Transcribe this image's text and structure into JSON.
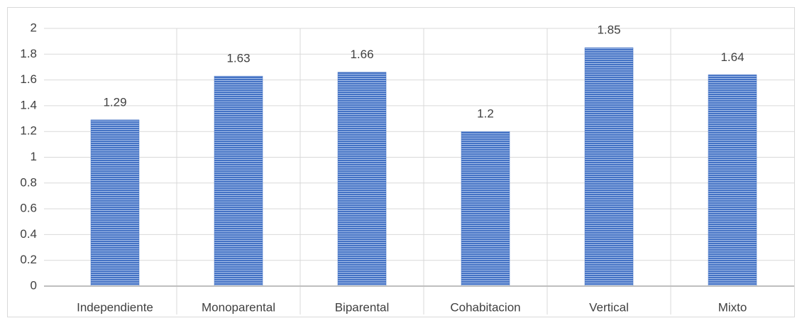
{
  "chart_data": {
    "type": "bar",
    "categories": [
      "Independiente",
      "Monoparental",
      "Biparental",
      "Cohabitacion",
      "Vertical",
      "Mixto"
    ],
    "values": [
      1.29,
      1.63,
      1.66,
      1.2,
      1.85,
      1.64
    ],
    "color": "#4472c4",
    "ylim": [
      0,
      2
    ],
    "yticks": [
      0,
      0.2,
      0.4,
      0.6,
      0.8,
      1,
      1.2,
      1.4,
      1.6,
      1.8,
      2
    ],
    "grid": true
  }
}
